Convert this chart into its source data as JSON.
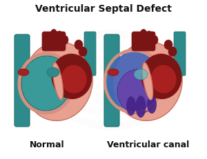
{
  "title": "Ventricular Septal Defect",
  "label_left": "Normal",
  "label_right": "Ventricular canal",
  "bg_color": "#ffffff",
  "title_fontsize": 10,
  "label_fontsize": 9,
  "colors": {
    "teal_vessel": "#2e8b8b",
    "teal_vessel_dark": "#236b6b",
    "teal_vessel_light": "#4ab0b0",
    "teal_chamber": "#3a9a9a",
    "heart_outer_pink": "#e8a090",
    "heart_outer_stroke": "#c87060",
    "dark_red": "#7a1515",
    "medium_red": "#a82020",
    "bright_red": "#c03030",
    "pink_inner": "#d49080",
    "pink_light": "#e8b8a8",
    "blue_defect": "#4466bb",
    "blue_light": "#6688dd",
    "purple_defect": "#6644aa",
    "purple_dark": "#442288",
    "purple_mid": "#7755cc",
    "vessel_dark_red": "#880f0f",
    "watermark_gray": "#e0e0e0",
    "cream": "#f0d0c0",
    "teal_light_bg": "#5ac0c0"
  }
}
